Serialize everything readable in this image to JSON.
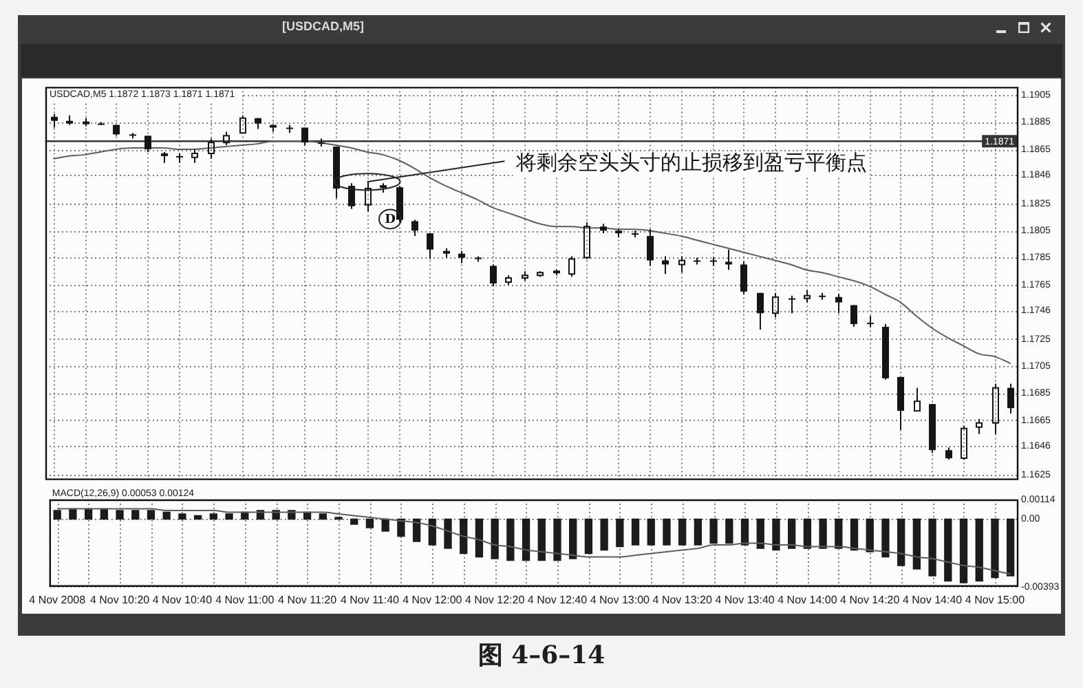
{
  "chart_data": [
    {
      "type": "candlestick",
      "title": "[USDCAD,M5]",
      "subtitle": "USDCAD,M5 1.1872 1.1873 1.1871 1.1871",
      "categories": [
        "4 Nov 2008",
        null,
        null,
        null,
        "4 Nov 10:20",
        null,
        null,
        null,
        "4 Nov 10:40",
        null,
        null,
        null,
        "4 Nov 11:00",
        null,
        null,
        null,
        "4 Nov 11:20",
        null,
        null,
        null,
        "4 Nov 11:40",
        null,
        null,
        null,
        "4 Nov 12:00",
        null,
        null,
        null,
        "4 Nov 12:20",
        null,
        null,
        null,
        "4 Nov 12:40",
        null,
        null,
        null,
        "4 Nov 13:00",
        null,
        null,
        null,
        "4 Nov 13:20",
        null,
        null,
        null,
        "4 Nov 13:40",
        null,
        null,
        null,
        "4 Nov 14:00",
        null,
        null,
        null,
        "4 Nov 14:20",
        null,
        null,
        null,
        "4 Nov 14:40",
        null,
        null,
        null,
        "4 Nov 15:00",
        null
      ],
      "ohlc": [
        [
          1.1889,
          1.1891,
          1.1881,
          1.1886
        ],
        [
          1.1886,
          1.189,
          1.1883,
          1.1884
        ],
        [
          1.1884,
          1.1888,
          1.1882,
          1.1885
        ],
        [
          1.1884,
          1.1885,
          1.1883,
          1.1884
        ],
        [
          1.1883,
          1.1883,
          1.1875,
          1.1876
        ],
        [
          1.1876,
          1.1877,
          1.1873,
          1.1875
        ],
        [
          1.1875,
          1.1875,
          1.1863,
          1.1865
        ],
        [
          1.1862,
          1.1863,
          1.1855,
          1.186
        ],
        [
          1.186,
          1.1862,
          1.1855,
          1.1859
        ],
        [
          1.1859,
          1.1865,
          1.1855,
          1.1862
        ],
        [
          1.1862,
          1.1873,
          1.1858,
          1.187
        ],
        [
          1.187,
          1.1878,
          1.1868,
          1.1875
        ],
        [
          1.1877,
          1.189,
          1.1877,
          1.1888
        ],
        [
          1.1888,
          1.1888,
          1.188,
          1.1884
        ],
        [
          1.1883,
          1.1883,
          1.1878,
          1.1881
        ],
        [
          1.1881,
          1.1883,
          1.1877,
          1.1881
        ],
        [
          1.1881,
          1.1881,
          1.1868,
          1.187
        ],
        [
          1.187,
          1.1873,
          1.1867,
          1.1869
        ],
        [
          1.1867,
          1.1867,
          1.1829,
          1.1836
        ],
        [
          1.1838,
          1.184,
          1.1821,
          1.1823
        ],
        [
          1.1824,
          1.1841,
          1.1819,
          1.1836
        ],
        [
          1.1837,
          1.184,
          1.1833,
          1.1838
        ],
        [
          1.1837,
          1.1838,
          1.1811,
          1.1813
        ],
        [
          1.1812,
          1.1813,
          1.1801,
          1.1805
        ],
        [
          1.1803,
          1.1803,
          1.1784,
          1.1791
        ],
        [
          1.179,
          1.1792,
          1.1785,
          1.1788
        ],
        [
          1.1788,
          1.179,
          1.1781,
          1.1785
        ],
        [
          1.1785,
          1.1786,
          1.1782,
          1.1784
        ],
        [
          1.1779,
          1.178,
          1.1764,
          1.1766
        ],
        [
          1.1767,
          1.1772,
          1.1765,
          1.177
        ],
        [
          1.177,
          1.1775,
          1.1768,
          1.1772
        ],
        [
          1.1772,
          1.1775,
          1.1771,
          1.1774
        ],
        [
          1.1774,
          1.1776,
          1.1772,
          1.1775
        ],
        [
          1.1773,
          1.1786,
          1.1771,
          1.1784
        ],
        [
          1.1785,
          1.1811,
          1.1784,
          1.1808
        ],
        [
          1.1808,
          1.181,
          1.1803,
          1.1805
        ],
        [
          1.1805,
          1.1806,
          1.18,
          1.1803
        ],
        [
          1.1803,
          1.1805,
          1.18,
          1.1802
        ],
        [
          1.1801,
          1.1806,
          1.1779,
          1.1783
        ],
        [
          1.1783,
          1.1786,
          1.1773,
          1.178
        ],
        [
          1.178,
          1.1786,
          1.1774,
          1.1783
        ],
        [
          1.1783,
          1.1785,
          1.178,
          1.1783
        ],
        [
          1.1783,
          1.1785,
          1.1779,
          1.1782
        ],
        [
          1.1782,
          1.1791,
          1.1776,
          1.178
        ],
        [
          1.178,
          1.1782,
          1.1758,
          1.176
        ],
        [
          1.1759,
          1.1759,
          1.1732,
          1.1744
        ],
        [
          1.1744,
          1.1759,
          1.1741,
          1.1756
        ],
        [
          1.1755,
          1.1757,
          1.1744,
          1.1755
        ],
        [
          1.1755,
          1.1761,
          1.1752,
          1.1757
        ],
        [
          1.1757,
          1.1759,
          1.1754,
          1.1756
        ],
        [
          1.1756,
          1.1758,
          1.1744,
          1.1752
        ],
        [
          1.175,
          1.175,
          1.1734,
          1.1736
        ],
        [
          1.1737,
          1.1742,
          1.1734,
          1.1737
        ],
        [
          1.1734,
          1.1736,
          1.1695,
          1.1696
        ],
        [
          1.1697,
          1.1697,
          1.1658,
          1.1672
        ],
        [
          1.1672,
          1.1689,
          1.1672,
          1.1679
        ],
        [
          1.1677,
          1.1677,
          1.1641,
          1.1643
        ],
        [
          1.1643,
          1.1645,
          1.1636,
          1.1637
        ],
        [
          1.1637,
          1.1661,
          1.1636,
          1.1659
        ],
        [
          1.166,
          1.1666,
          1.1655,
          1.1663
        ],
        [
          1.1663,
          1.1692,
          1.1655,
          1.1689
        ],
        [
          1.1689,
          1.1692,
          1.167,
          1.1674
        ]
      ],
      "color": "#151515",
      "series": [
        {
          "type": "line",
          "color": "#5e5e5e",
          "values": [
            1.1858,
            1.186,
            1.1861,
            1.1863,
            1.1865,
            1.1866,
            1.1866,
            1.1866,
            1.1865,
            1.1865,
            1.1866,
            1.1867,
            1.1868,
            1.1869,
            1.1871,
            1.1871,
            1.1871,
            1.187,
            1.1868,
            1.1866,
            1.1863,
            1.1861,
            1.1857,
            1.1851,
            1.1844,
            1.1838,
            1.1833,
            1.1828,
            1.1822,
            1.1818,
            1.1814,
            1.181,
            1.1808,
            1.1808,
            1.1807,
            1.1807,
            1.1806,
            1.1806,
            1.1805,
            1.1803,
            1.1801,
            1.1798,
            1.1795,
            1.1792,
            1.1789,
            1.1786,
            1.1783,
            1.178,
            1.1776,
            1.1774,
            1.1771,
            1.1768,
            1.1764,
            1.1758,
            1.1752,
            1.1742,
            1.1733,
            1.1726,
            1.172,
            1.1714,
            1.1712,
            1.1707
          ]
        }
      ],
      "ylim": [
        1.1621,
        1.1911
      ],
      "yticks": [
        1.1625,
        1.1646,
        1.1665,
        1.1685,
        1.1705,
        1.1725,
        1.1746,
        1.1765,
        1.1785,
        1.1805,
        1.1825,
        1.1846,
        1.1865,
        1.1885,
        1.1905
      ],
      "grid": true,
      "tick_labels": "y",
      "ref_lines": [
        {
          "axis": "y",
          "value": 1.1871,
          "label": "1.1871",
          "color": "#333333"
        }
      ],
      "annotations": [
        {
          "text": "将剩余空头头寸的止损移到盈亏平衡点",
          "x": "4 Nov 11:40",
          "y": 1.1841
        },
        "D"
      ]
    },
    {
      "type": "bar",
      "title": "MACD(12,26,9) 0.00053 0.00124",
      "categories": [
        "4 Nov 2008",
        null,
        null,
        null,
        "4 Nov 10:20",
        null,
        null,
        null,
        "4 Nov 10:40",
        null,
        null,
        null,
        "4 Nov 11:00",
        null,
        null,
        null,
        "4 Nov 11:20",
        null,
        null,
        null,
        "4 Nov 11:40",
        null,
        null,
        null,
        "4 Nov 12:00",
        null,
        null,
        null,
        "4 Nov 12:20",
        null,
        null,
        null,
        "4 Nov 12:40",
        null,
        null,
        null,
        "4 Nov 13:00",
        null,
        null,
        null,
        "4 Nov 13:20",
        null,
        null,
        null,
        "4 Nov 13:40",
        null,
        null,
        null,
        "4 Nov 14:00",
        null,
        null,
        null,
        "4 Nov 14:20",
        null,
        null,
        null,
        "4 Nov 14:40",
        null,
        null,
        null,
        "4 Nov 15:00",
        null
      ],
      "series": [
        {
          "type": "bar",
          "color": "#1c1c1c",
          "values": [
            0.0005,
            0.0006,
            0.0006,
            0.0006,
            0.0005,
            0.0005,
            0.0005,
            0.0004,
            0.0003,
            0.0002,
            0.0003,
            0.0003,
            0.0004,
            0.0005,
            0.0005,
            0.0005,
            0.0004,
            0.0003,
            0.0001,
            -0.0003,
            -0.0005,
            -0.0007,
            -0.001,
            -0.0013,
            -0.0015,
            -0.0017,
            -0.002,
            -0.0022,
            -0.0023,
            -0.0024,
            -0.0024,
            -0.0024,
            -0.0024,
            -0.0023,
            -0.002,
            -0.0018,
            -0.0016,
            -0.0015,
            -0.0015,
            -0.0015,
            -0.0015,
            -0.0015,
            -0.0014,
            -0.0014,
            -0.0015,
            -0.0017,
            -0.0018,
            -0.0017,
            -0.0017,
            -0.0017,
            -0.0017,
            -0.0018,
            -0.0019,
            -0.0022,
            -0.0027,
            -0.0029,
            -0.0033,
            -0.0036,
            -0.0037,
            -0.0036,
            -0.0034,
            -0.0033
          ]
        },
        {
          "type": "line",
          "color": "#5e5e5e",
          "values": [
            0.0006,
            0.0006,
            0.0006,
            0.0006,
            0.0006,
            0.0006,
            0.0006,
            0.0005,
            0.0005,
            0.0005,
            0.0005,
            0.0004,
            0.0004,
            0.0004,
            0.0004,
            0.0004,
            0.0004,
            0.0004,
            0.0003,
            0.0002,
            0.0001,
            0.0,
            -0.0001,
            -0.0002,
            -0.0004,
            -0.0007,
            -0.001,
            -0.0012,
            -0.0015,
            -0.0016,
            -0.0018,
            -0.0019,
            -0.002,
            -0.0021,
            -0.0022,
            -0.0022,
            -0.0022,
            -0.0021,
            -0.002,
            -0.0019,
            -0.0018,
            -0.0017,
            -0.0015,
            -0.0015,
            -0.0014,
            -0.0014,
            -0.0015,
            -0.0015,
            -0.0016,
            -0.0016,
            -0.0016,
            -0.0017,
            -0.0018,
            -0.0019,
            -0.002,
            -0.0022,
            -0.0023,
            -0.0025,
            -0.0027,
            -0.0028,
            -0.003,
            -0.0032
          ]
        }
      ],
      "ylim": [
        -0.00393,
        0.00114
      ],
      "yticks": [
        -0.00393,
        {
          "value": 0,
          "label": "0.00"
        },
        0.00114
      ],
      "grid": true,
      "annotations": [
        "图 4–6–14"
      ]
    }
  ]
}
